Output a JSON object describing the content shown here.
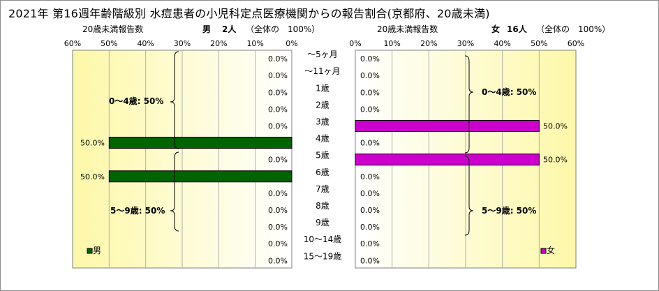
{
  "title": "2021年 第16週年齢階級別 水痘患者の小児科定点医療機関からの報告割合(京都府、20歳未満)",
  "left_panel": {
    "subtitle_left": "20歳未満報告数",
    "sex": "男",
    "count": "2人",
    "total_note": "（全体の　100%）"
  },
  "right_panel": {
    "subtitle_left": "20歳未満報告数",
    "sex": "女",
    "count": "16人",
    "total_note": "（全体の　100%）"
  },
  "chart_data": [
    {
      "type": "bar",
      "orientation": "horizontal",
      "direction": "right-to-left",
      "categories": [
        "〜5ヶ月",
        "〜11ヶ月",
        "1歳",
        "2歳",
        "3歳",
        "4歳",
        "5歳",
        "6歳",
        "7歳",
        "8歳",
        "9歳",
        "10〜14歳",
        "15〜19歳"
      ],
      "series": [
        {
          "name": "男",
          "values": [
            0,
            0,
            0,
            0,
            0,
            50,
            0,
            50,
            0,
            0,
            0,
            0,
            0
          ],
          "color": "#006400"
        }
      ],
      "data_labels": [
        "0.0%",
        "0.0%",
        "0.0%",
        "0.0%",
        "0.0%",
        "50.0%",
        "0.0%",
        "50.0%",
        "0.0%",
        "0.0%",
        "0.0%",
        "0.0%",
        "0.0%"
      ],
      "xlim": [
        0,
        60
      ],
      "xticks": [
        "60%",
        "50%",
        "40%",
        "30%",
        "20%",
        "10%",
        "0%"
      ],
      "annotations": [
        "0〜4歳: 50%",
        "5〜9歳: 50%"
      ],
      "legend": "bottom-left",
      "grid": true
    },
    {
      "type": "bar",
      "orientation": "horizontal",
      "direction": "left-to-right",
      "categories": [
        "〜5ヶ月",
        "〜11ヶ月",
        "1歳",
        "2歳",
        "3歳",
        "4歳",
        "5歳",
        "6歳",
        "7歳",
        "8歳",
        "9歳",
        "10〜14歳",
        "15〜19歳"
      ],
      "series": [
        {
          "name": "女",
          "values": [
            0,
            0,
            0,
            0,
            50,
            0,
            50,
            0,
            0,
            0,
            0,
            0,
            0
          ],
          "color": "#cc00cc"
        }
      ],
      "data_labels": [
        "0.0%",
        "0.0%",
        "0.0%",
        "0.0%",
        "50.0%",
        "0.0%",
        "50.0%",
        "0.0%",
        "0.0%",
        "0.0%",
        "0.0%",
        "0.0%",
        "0.0%"
      ],
      "xlim": [
        0,
        60
      ],
      "xticks": [
        "0%",
        "10%",
        "20%",
        "30%",
        "40%",
        "50%",
        "60%"
      ],
      "annotations": [
        "0〜4歳: 50%",
        "5〜9歳: 50%"
      ],
      "legend": "bottom-right",
      "grid": true
    }
  ]
}
